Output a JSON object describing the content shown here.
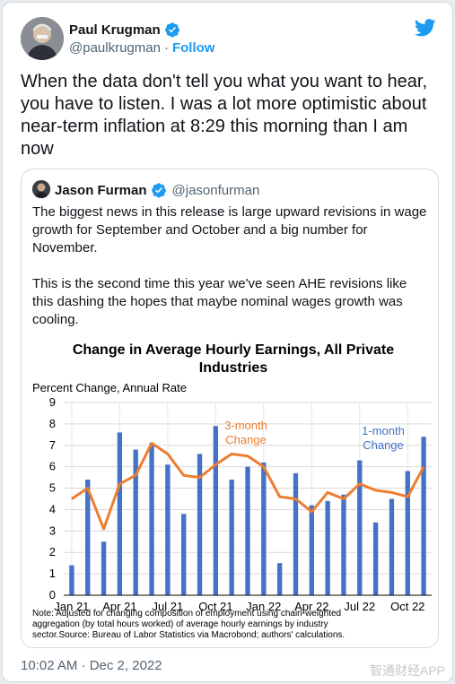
{
  "author": {
    "name": "Paul Krugman",
    "handle": "@paulkrugman",
    "separator": "·",
    "follow_label": "Follow"
  },
  "tweet": {
    "text": "When the data don't tell you what you want to hear, you have to listen. I was a lot more optimistic about near-term inflation at 8:29 this morning than I am now"
  },
  "quoted": {
    "name": "Jason Furman",
    "handle": "@jasonfurman",
    "paragraphs": [
      "The biggest news in this release is large upward revisions in wage growth for September and October and a big number for November.",
      "This is the second time this year we've seen AHE revisions like this dashing the hopes that maybe nominal wages growth was cooling."
    ]
  },
  "footer": {
    "timestamp": "10:02 AM · Dec 2, 2022"
  },
  "watermark": "智通财经APP",
  "icons": {
    "verified": "verified-badge-icon",
    "twitter": "twitter-bird-icon"
  },
  "colors": {
    "accent": "#1d9bf0",
    "bar": "#4472c4",
    "line": "#ed7d31",
    "text_muted": "#536471"
  },
  "chart_data": {
    "type": "bar",
    "title": "Change in Average Hourly Earnings, All Private Industries",
    "ylabel": "Percent Change, Annual Rate",
    "ylim": [
      0,
      9
    ],
    "yticks": [
      0,
      1,
      2,
      3,
      4,
      5,
      6,
      7,
      8,
      9
    ],
    "xtick_labels": [
      "Jan 21",
      "Apr 21",
      "Jul 21",
      "Oct 21",
      "Jan 22",
      "Apr 22",
      "Jul 22",
      "Oct 22"
    ],
    "xtick_indices": [
      0,
      3,
      6,
      9,
      12,
      15,
      18,
      21
    ],
    "grid": true,
    "note": "Note: Adjusted for changing composition of employment using chain-weighted aggregation (by total hours worked) of average hourly earnings by industry sector.Source: Bureau of Labor Statistics via Macrobond;  authors' calculations.",
    "series": [
      {
        "name": "1-month Change",
        "label_lines": [
          "1-month",
          "Change"
        ],
        "kind": "bar",
        "values": [
          1.4,
          5.4,
          2.5,
          7.6,
          6.8,
          7.1,
          6.1,
          3.8,
          6.6,
          7.9,
          5.4,
          6.0,
          6.2,
          1.5,
          5.7,
          4.2,
          4.4,
          4.7,
          6.3,
          3.4,
          4.5,
          5.8,
          7.4
        ]
      },
      {
        "name": "3-month Change",
        "label_lines": [
          "3-month",
          "Change"
        ],
        "kind": "line",
        "values": [
          4.5,
          5.0,
          3.1,
          5.2,
          5.6,
          7.1,
          6.6,
          5.6,
          5.5,
          6.1,
          6.6,
          6.5,
          6.0,
          4.6,
          4.5,
          3.9,
          4.8,
          4.5,
          5.2,
          4.9,
          4.8,
          4.6,
          6.0
        ]
      }
    ]
  }
}
